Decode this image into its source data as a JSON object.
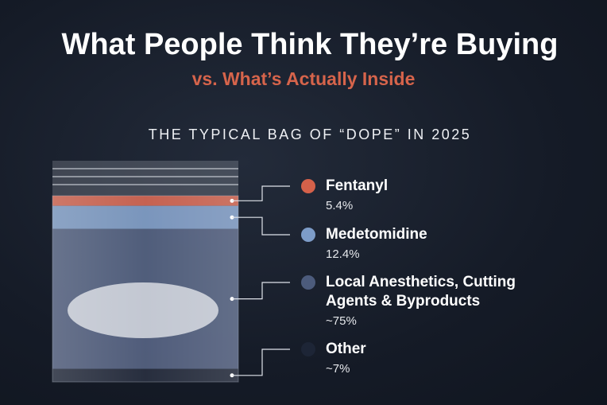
{
  "chart_data": {
    "type": "bag",
    "title": "What People Think They’re Buying",
    "subtitle": "vs. What’s Actually Inside",
    "heading": "THE TYPICAL BAG OF “DOPE” IN 2025",
    "categories": [
      "Fentanyl",
      "Medetomidine",
      "Local Anesthetics, Cutting Agents & Byproducts",
      "Other"
    ],
    "values": [
      5.4,
      12.4,
      75,
      7
    ],
    "value_labels": [
      "5.4%",
      "12.4%",
      "~75%",
      "~7%"
    ],
    "colors": [
      "#d5614a",
      "#7d9cc8",
      "#4c5b7c",
      "#1d2536"
    ]
  }
}
